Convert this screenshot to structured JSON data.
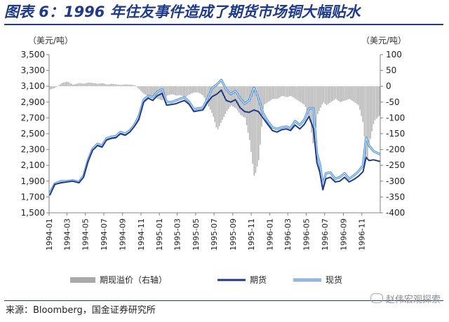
{
  "title": "图表 6：1996 年住友事件造成了期货市场铜大幅贴水",
  "source": "来源：Bloomberg，国金证券研究所",
  "watermark": "赵伟宏观探索",
  "colors": {
    "title": "#1f3a8a",
    "premium": "#a9a9a9",
    "futures": "#1f3a8a",
    "spot": "#4a90d9"
  },
  "chart_data": {
    "type": "line",
    "left_axis_unit": "（美元/吨）",
    "right_axis_unit": "（美元/吨）",
    "ylim_left": [
      1500,
      3500
    ],
    "yticks_left": [
      "1,500",
      "1,700",
      "1,900",
      "2,100",
      "2,300",
      "2,500",
      "2,700",
      "2,900",
      "3,100",
      "3,300",
      "3,500"
    ],
    "ylim_right": [
      -400,
      100
    ],
    "yticks_right": [
      "-400",
      "-350",
      "-300",
      "-250",
      "-200",
      "-150",
      "-100",
      "-50",
      "0",
      "50",
      "100"
    ],
    "x_ticks": [
      "1994-01",
      "1994-03",
      "1994-05",
      "1994-07",
      "1994-09",
      "1994-11",
      "1995-01",
      "1995-03",
      "1995-05",
      "1995-07",
      "1995-09",
      "1995-11",
      "1996-01",
      "1996-03",
      "1996-05",
      "1996-07",
      "1996-09",
      "1996-11"
    ],
    "x_range": [
      "1994-01",
      "1996-12"
    ],
    "legend": [
      "期现溢价（右轴）",
      "期货",
      "现货"
    ],
    "legend_placement": "bottom",
    "series": [
      {
        "name": "期货",
        "axis": "left",
        "points": [
          [
            "1994-01-03",
            1720
          ],
          [
            "1994-01-20",
            1860
          ],
          [
            "1994-02-10",
            1880
          ],
          [
            "1994-03-01",
            1890
          ],
          [
            "1994-03-20",
            1900
          ],
          [
            "1994-04-10",
            1880
          ],
          [
            "1994-04-25",
            1950
          ],
          [
            "1994-05-10",
            2150
          ],
          [
            "1994-05-25",
            2290
          ],
          [
            "1994-06-10",
            2350
          ],
          [
            "1994-06-25",
            2330
          ],
          [
            "1994-07-10",
            2420
          ],
          [
            "1994-07-25",
            2440
          ],
          [
            "1994-08-10",
            2450
          ],
          [
            "1994-08-25",
            2500
          ],
          [
            "1994-09-10",
            2480
          ],
          [
            "1994-09-25",
            2520
          ],
          [
            "1994-10-10",
            2590
          ],
          [
            "1994-10-25",
            2680
          ],
          [
            "1994-11-10",
            2900
          ],
          [
            "1994-11-25",
            2950
          ],
          [
            "1994-12-10",
            2920
          ],
          [
            "1994-12-25",
            2980
          ],
          [
            "1995-01-10",
            3010
          ],
          [
            "1995-01-25",
            2860
          ],
          [
            "1995-02-10",
            2870
          ],
          [
            "1995-02-25",
            2880
          ],
          [
            "1995-03-10",
            2900
          ],
          [
            "1995-03-25",
            2920
          ],
          [
            "1995-04-10",
            2870
          ],
          [
            "1995-04-25",
            2780
          ],
          [
            "1995-05-10",
            2790
          ],
          [
            "1995-05-25",
            2800
          ],
          [
            "1995-06-10",
            2900
          ],
          [
            "1995-06-25",
            2970
          ],
          [
            "1995-07-10",
            3000
          ],
          [
            "1995-07-25",
            3050
          ],
          [
            "1995-08-10",
            2920
          ],
          [
            "1995-08-25",
            2900
          ],
          [
            "1995-09-10",
            2930
          ],
          [
            "1995-09-25",
            2830
          ],
          [
            "1995-10-10",
            2780
          ],
          [
            "1995-10-25",
            2770
          ],
          [
            "1995-11-10",
            2800
          ],
          [
            "1995-11-25",
            2780
          ],
          [
            "1995-12-10",
            2700
          ],
          [
            "1995-12-25",
            2620
          ],
          [
            "1996-01-10",
            2540
          ],
          [
            "1996-01-25",
            2520
          ],
          [
            "1996-02-10",
            2550
          ],
          [
            "1996-02-25",
            2560
          ],
          [
            "1996-03-10",
            2540
          ],
          [
            "1996-03-25",
            2610
          ],
          [
            "1996-04-10",
            2560
          ],
          [
            "1996-04-25",
            2620
          ],
          [
            "1996-05-10",
            2720
          ],
          [
            "1996-05-25",
            2560
          ],
          [
            "1996-06-05",
            2140
          ],
          [
            "1996-06-15",
            2010
          ],
          [
            "1996-06-25",
            1790
          ],
          [
            "1996-07-05",
            1930
          ],
          [
            "1996-07-20",
            1950
          ],
          [
            "1996-08-05",
            1890
          ],
          [
            "1996-08-20",
            1900
          ],
          [
            "1996-09-05",
            1950
          ],
          [
            "1996-09-20",
            1890
          ],
          [
            "1996-10-05",
            1920
          ],
          [
            "1996-10-20",
            1960
          ],
          [
            "1996-11-05",
            2020
          ],
          [
            "1996-11-15",
            2200
          ],
          [
            "1996-11-25",
            2160
          ],
          [
            "1996-12-10",
            2170
          ],
          [
            "1996-12-31",
            2150
          ]
        ]
      },
      {
        "name": "现货",
        "axis": "left",
        "points": [
          [
            "1994-01-03",
            1750
          ],
          [
            "1994-01-20",
            1870
          ],
          [
            "1994-02-10",
            1900
          ],
          [
            "1994-03-01",
            1900
          ],
          [
            "1994-03-20",
            1910
          ],
          [
            "1994-04-10",
            1890
          ],
          [
            "1994-04-25",
            1970
          ],
          [
            "1994-05-10",
            2170
          ],
          [
            "1994-05-25",
            2310
          ],
          [
            "1994-06-10",
            2370
          ],
          [
            "1994-06-25",
            2350
          ],
          [
            "1994-07-10",
            2440
          ],
          [
            "1994-07-25",
            2460
          ],
          [
            "1994-08-10",
            2470
          ],
          [
            "1994-08-25",
            2520
          ],
          [
            "1994-09-10",
            2500
          ],
          [
            "1994-09-25",
            2540
          ],
          [
            "1994-10-10",
            2610
          ],
          [
            "1994-10-25",
            2720
          ],
          [
            "1994-11-10",
            2930
          ],
          [
            "1994-11-25",
            2980
          ],
          [
            "1994-12-10",
            2960
          ],
          [
            "1994-12-25",
            3030
          ],
          [
            "1995-01-10",
            3060
          ],
          [
            "1995-01-25",
            2900
          ],
          [
            "1995-02-10",
            2900
          ],
          [
            "1995-02-25",
            2920
          ],
          [
            "1995-03-10",
            2940
          ],
          [
            "1995-03-25",
            2960
          ],
          [
            "1995-04-10",
            2900
          ],
          [
            "1995-04-25",
            2810
          ],
          [
            "1995-05-10",
            2820
          ],
          [
            "1995-05-25",
            2830
          ],
          [
            "1995-06-10",
            2950
          ],
          [
            "1995-06-25",
            3080
          ],
          [
            "1995-07-10",
            3120
          ],
          [
            "1995-07-25",
            3180
          ],
          [
            "1995-08-10",
            3060
          ],
          [
            "1995-08-25",
            3000
          ],
          [
            "1995-09-10",
            3040
          ],
          [
            "1995-09-25",
            2950
          ],
          [
            "1995-10-10",
            2880
          ],
          [
            "1995-10-25",
            2920
          ],
          [
            "1995-11-10",
            3080
          ],
          [
            "1995-11-25",
            2950
          ],
          [
            "1995-12-10",
            2760
          ],
          [
            "1995-12-25",
            2660
          ],
          [
            "1996-01-10",
            2580
          ],
          [
            "1996-01-25",
            2560
          ],
          [
            "1996-02-10",
            2580
          ],
          [
            "1996-02-25",
            2590
          ],
          [
            "1996-03-10",
            2570
          ],
          [
            "1996-03-25",
            2660
          ],
          [
            "1996-04-10",
            2610
          ],
          [
            "1996-04-25",
            2680
          ],
          [
            "1996-05-10",
            2820
          ],
          [
            "1996-05-25",
            2820
          ],
          [
            "1996-06-05",
            2250
          ],
          [
            "1996-06-15",
            2120
          ],
          [
            "1996-06-25",
            1850
          ],
          [
            "1996-07-05",
            2000
          ],
          [
            "1996-07-20",
            2010
          ],
          [
            "1996-08-05",
            1930
          ],
          [
            "1996-08-20",
            1950
          ],
          [
            "1996-09-05",
            2000
          ],
          [
            "1996-09-20",
            1930
          ],
          [
            "1996-10-05",
            1970
          ],
          [
            "1996-10-20",
            2020
          ],
          [
            "1996-11-05",
            2100
          ],
          [
            "1996-11-15",
            2450
          ],
          [
            "1996-11-25",
            2350
          ],
          [
            "1996-12-10",
            2280
          ],
          [
            "1996-12-31",
            2240
          ]
        ]
      },
      {
        "name": "期现溢价（右轴）",
        "axis": "right",
        "type": "bar",
        "points": [
          [
            "1994-01-03",
            -10
          ],
          [
            "1994-01-20",
            -5
          ],
          [
            "1994-02-10",
            10
          ],
          [
            "1994-03-01",
            15
          ],
          [
            "1994-03-20",
            5
          ],
          [
            "1994-04-10",
            10
          ],
          [
            "1994-04-25",
            8
          ],
          [
            "1994-05-10",
            12
          ],
          [
            "1994-05-25",
            10
          ],
          [
            "1994-06-10",
            8
          ],
          [
            "1994-06-25",
            10
          ],
          [
            "1994-07-10",
            5
          ],
          [
            "1994-07-25",
            8
          ],
          [
            "1994-08-10",
            6
          ],
          [
            "1994-08-25",
            4
          ],
          [
            "1994-09-10",
            6
          ],
          [
            "1994-09-25",
            5
          ],
          [
            "1994-10-10",
            3
          ],
          [
            "1994-10-25",
            -10
          ],
          [
            "1994-11-10",
            -25
          ],
          [
            "1994-11-25",
            -30
          ],
          [
            "1994-12-10",
            -30
          ],
          [
            "1994-12-25",
            -40
          ],
          [
            "1995-01-10",
            -45
          ],
          [
            "1995-01-25",
            -30
          ],
          [
            "1995-02-10",
            -25
          ],
          [
            "1995-02-25",
            -30
          ],
          [
            "1995-03-10",
            -28
          ],
          [
            "1995-03-25",
            -35
          ],
          [
            "1995-04-10",
            -25
          ],
          [
            "1995-04-25",
            -20
          ],
          [
            "1995-05-10",
            -20
          ],
          [
            "1995-05-25",
            -30
          ],
          [
            "1995-06-10",
            -60
          ],
          [
            "1995-06-25",
            -90
          ],
          [
            "1995-07-10",
            -140
          ],
          [
            "1995-07-25",
            -110
          ],
          [
            "1995-08-10",
            -80
          ],
          [
            "1995-08-25",
            -60
          ],
          [
            "1995-09-10",
            -70
          ],
          [
            "1995-09-25",
            -90
          ],
          [
            "1995-10-10",
            -100
          ],
          [
            "1995-10-25",
            -170
          ],
          [
            "1995-11-10",
            -290
          ],
          [
            "1995-11-25",
            -230
          ],
          [
            "1995-12-10",
            -60
          ],
          [
            "1995-12-25",
            -50
          ],
          [
            "1996-01-10",
            -40
          ],
          [
            "1996-01-25",
            -40
          ],
          [
            "1996-02-10",
            -30
          ],
          [
            "1996-02-25",
            -35
          ],
          [
            "1996-03-10",
            -30
          ],
          [
            "1996-03-25",
            -40
          ],
          [
            "1996-04-10",
            -50
          ],
          [
            "1996-04-25",
            -60
          ],
          [
            "1996-05-10",
            -100
          ],
          [
            "1996-05-25",
            -200
          ],
          [
            "1996-06-05",
            -90
          ],
          [
            "1996-06-15",
            -70
          ],
          [
            "1996-06-25",
            -50
          ],
          [
            "1996-07-05",
            -60
          ],
          [
            "1996-07-20",
            -50
          ],
          [
            "1996-08-05",
            -40
          ],
          [
            "1996-08-20",
            -50
          ],
          [
            "1996-09-05",
            -45
          ],
          [
            "1996-09-20",
            -40
          ],
          [
            "1996-10-05",
            -50
          ],
          [
            "1996-10-20",
            -60
          ],
          [
            "1996-11-05",
            -120
          ],
          [
            "1996-11-15",
            -250
          ],
          [
            "1996-11-25",
            -180
          ],
          [
            "1996-12-10",
            -110
          ],
          [
            "1996-12-31",
            -90
          ]
        ]
      }
    ]
  }
}
